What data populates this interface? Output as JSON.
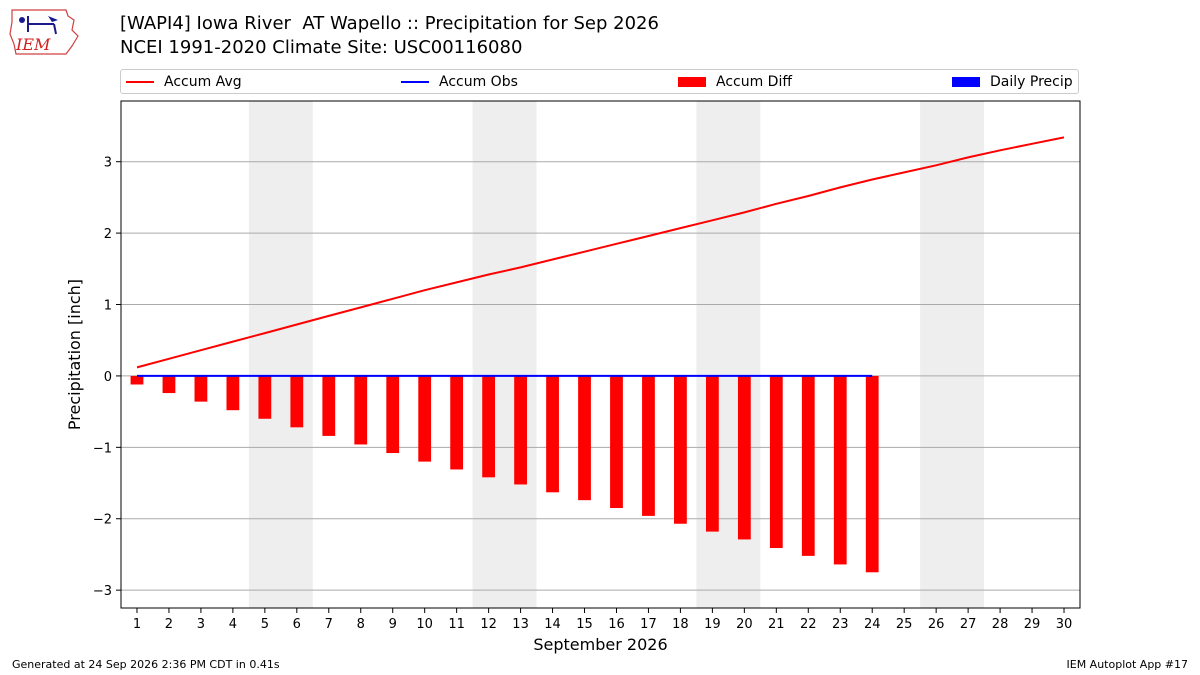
{
  "header": {
    "logo_text": "IEM",
    "title_line1": "[WAPI4] Iowa River  AT Wapello :: Precipitation for Sep 2026",
    "title_line2": "NCEI 1991-2020 Climate Site: USC00116080"
  },
  "legend": {
    "accum_avg": "Accum Avg",
    "accum_obs": "Accum Obs",
    "accum_diff": "Accum Diff",
    "daily_precip": "Daily Precip"
  },
  "colors": {
    "accum_avg": "#ff0000",
    "accum_obs": "#0000ff",
    "accum_diff": "#ff0000",
    "daily_precip": "#0000ff",
    "weekend_shade": "#eeeeee",
    "grid": "#aaaaaa"
  },
  "chart_data": {
    "type": "bar",
    "xlabel": "September 2026",
    "ylabel": "Precipitation [inch]",
    "ylim": [
      -3.25,
      3.85
    ],
    "xlim": [
      0.5,
      30.5
    ],
    "yticks": [
      -3,
      -2,
      -1,
      0,
      1,
      2,
      3
    ],
    "xticks": [
      1,
      2,
      3,
      4,
      5,
      6,
      7,
      8,
      9,
      10,
      11,
      12,
      13,
      14,
      15,
      16,
      17,
      18,
      19,
      20,
      21,
      22,
      23,
      24,
      25,
      26,
      27,
      28,
      29,
      30
    ],
    "grid": true,
    "legend_position": "top",
    "weekend_shading": [
      [
        5,
        6
      ],
      [
        12,
        13
      ],
      [
        19,
        20
      ],
      [
        26,
        27
      ]
    ],
    "series": [
      {
        "name": "Accum Avg",
        "type": "line",
        "x": [
          1,
          2,
          3,
          4,
          5,
          6,
          7,
          8,
          9,
          10,
          11,
          12,
          13,
          14,
          15,
          16,
          17,
          18,
          19,
          20,
          21,
          22,
          23,
          24,
          25,
          26,
          27,
          28,
          29,
          30
        ],
        "values": [
          0.12,
          0.24,
          0.36,
          0.48,
          0.6,
          0.72,
          0.84,
          0.96,
          1.08,
          1.2,
          1.31,
          1.42,
          1.52,
          1.63,
          1.74,
          1.85,
          1.96,
          2.07,
          2.18,
          2.29,
          2.41,
          2.52,
          2.64,
          2.75,
          2.85,
          2.95,
          3.06,
          3.16,
          3.25,
          3.34
        ]
      },
      {
        "name": "Accum Obs",
        "type": "line",
        "x": [
          1,
          2,
          3,
          4,
          5,
          6,
          7,
          8,
          9,
          10,
          11,
          12,
          13,
          14,
          15,
          16,
          17,
          18,
          19,
          20,
          21,
          22,
          23,
          24
        ],
        "values": [
          0,
          0,
          0,
          0,
          0,
          0,
          0,
          0,
          0,
          0,
          0,
          0,
          0,
          0,
          0,
          0,
          0,
          0,
          0,
          0,
          0,
          0,
          0,
          0
        ]
      },
      {
        "name": "Accum Diff",
        "type": "bar",
        "x": [
          1,
          2,
          3,
          4,
          5,
          6,
          7,
          8,
          9,
          10,
          11,
          12,
          13,
          14,
          15,
          16,
          17,
          18,
          19,
          20,
          21,
          22,
          23,
          24
        ],
        "values": [
          -0.12,
          -0.24,
          -0.36,
          -0.48,
          -0.6,
          -0.72,
          -0.84,
          -0.96,
          -1.08,
          -1.2,
          -1.31,
          -1.42,
          -1.52,
          -1.63,
          -1.74,
          -1.85,
          -1.96,
          -2.07,
          -2.18,
          -2.29,
          -2.41,
          -2.52,
          -2.64,
          -2.75
        ]
      },
      {
        "name": "Daily Precip",
        "type": "bar",
        "x": [],
        "values": []
      }
    ]
  },
  "footer": {
    "generated": "Generated at 24 Sep 2026 2:36 PM CDT in 0.41s",
    "app": "IEM Autoplot App #17"
  }
}
